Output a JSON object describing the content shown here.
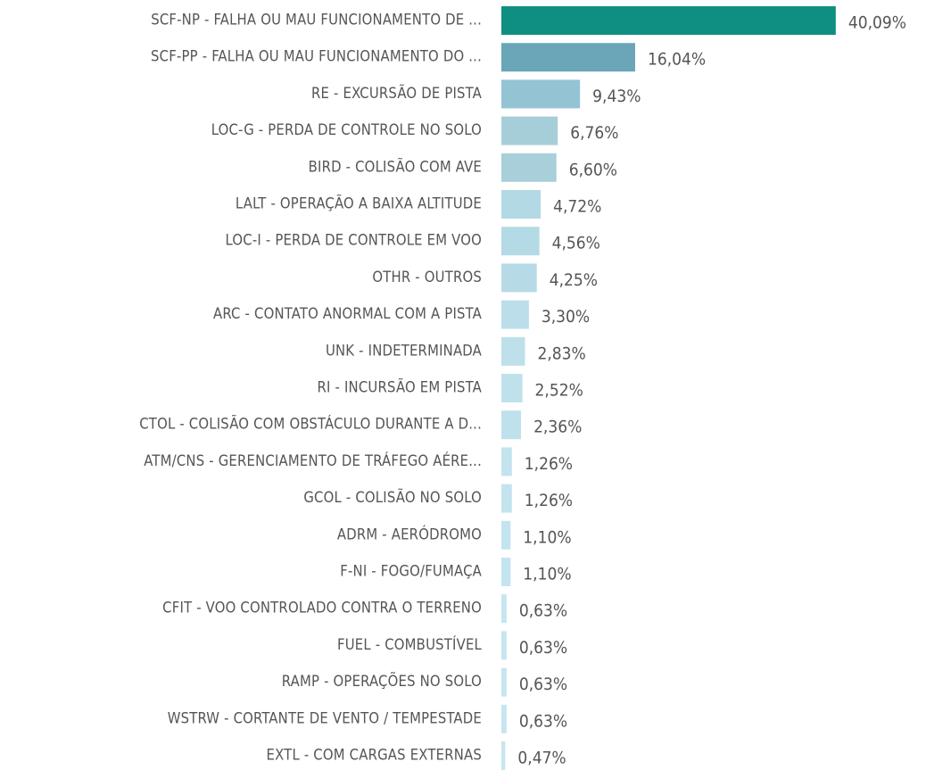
{
  "chart_data": {
    "type": "hbar",
    "categories": [
      "SCF-NP - FALHA OU MAU FUNCIONAMENTO DE ...",
      "SCF-PP - FALHA OU MAU FUNCIONAMENTO DO ...",
      "RE - EXCURSÃO DE PISTA",
      "LOC-G - PERDA DE CONTROLE NO SOLO",
      "BIRD - COLISÃO COM AVE",
      "LALT - OPERAÇÃO A BAIXA ALTITUDE",
      "LOC-I - PERDA DE CONTROLE EM VOO",
      "OTHR - OUTROS",
      "ARC - CONTATO ANORMAL COM A PISTA",
      "UNK - INDETERMINADA",
      "RI - INCURSÃO EM PISTA",
      "CTOL - COLISÃO COM OBSTÁCULO DURANTE A D...",
      "ATM/CNS - GERENCIAMENTO DE TRÁFEGO AÉRE...",
      "GCOL - COLISÃO NO SOLO",
      "ADRM - AERÓDROMO",
      "F-NI - FOGO/FUMAÇA",
      "CFIT - VOO CONTROLADO CONTRA O TERRENO",
      "FUEL - COMBUSTÍVEL",
      "RAMP - OPERAÇÕES NO SOLO",
      "WSTRW - CORTANTE DE VENTO / TEMPESTADE",
      "EXTL - COM CARGAS EXTERNAS"
    ],
    "values": [
      40.09,
      16.04,
      9.43,
      6.76,
      6.6,
      4.72,
      4.56,
      4.25,
      3.3,
      2.83,
      2.52,
      2.36,
      1.26,
      1.26,
      1.1,
      1.1,
      0.63,
      0.63,
      0.63,
      0.63,
      0.47
    ],
    "value_labels": [
      "40,09%",
      "16,04%",
      "9,43%",
      "6,76%",
      "6,60%",
      "4,72%",
      "4,56%",
      "4,25%",
      "3,30%",
      "2,83%",
      "2,52%",
      "2,36%",
      "1,26%",
      "1,26%",
      "1,10%",
      "1,10%",
      "0,63%",
      "0,63%",
      "0,63%",
      "0,63%",
      "0,47%"
    ],
    "colors": [
      "#0e8f81",
      "#6aa6b7",
      "#94c4d4",
      "#a6ced9",
      "#a8cfda",
      "#b3d9e4",
      "#b4dae5",
      "#b6dbe6",
      "#bbdeea",
      "#bde0eb",
      "#bfe1ec",
      "#bfe1ec",
      "#c3e3ee",
      "#c3e3ee",
      "#c4e4ef",
      "#c4e4ef",
      "#c6e5f0",
      "#c6e5f0",
      "#c6e5f0",
      "#c6e5f0",
      "#c7e6f0"
    ],
    "xlim": [
      0,
      40
    ]
  }
}
